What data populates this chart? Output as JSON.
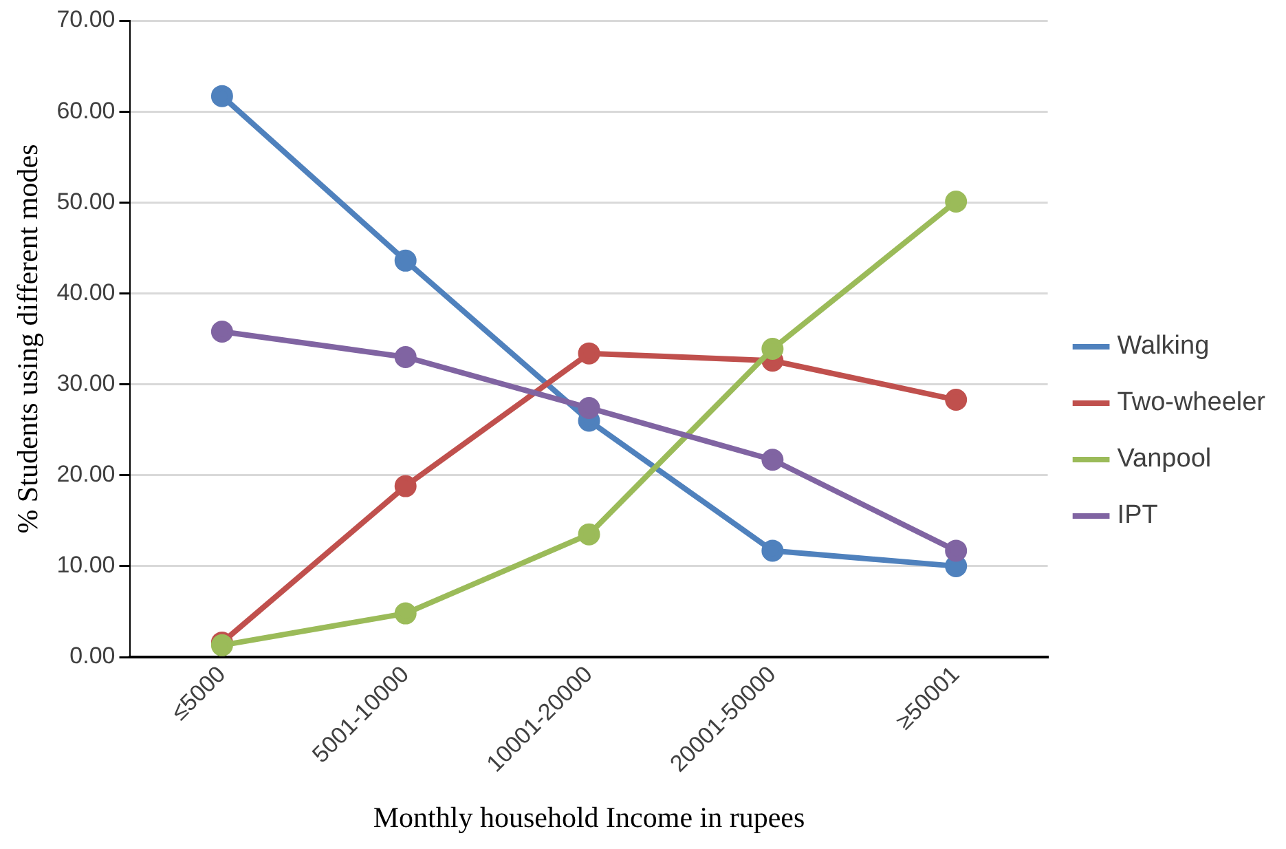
{
  "chart_data": {
    "type": "line",
    "xlabel": "Monthly household Income in rupees",
    "ylabel": "% Students using different modes",
    "categories": [
      "≤5000",
      "5001-10000",
      "10001-20000",
      "20001-50000",
      "≥50001"
    ],
    "series": [
      {
        "name": "Walking",
        "color": "#4f81bd",
        "values": [
          61.7,
          43.6,
          26.0,
          11.7,
          10.0
        ]
      },
      {
        "name": "Two-wheeler",
        "color": "#c0504d",
        "values": [
          1.6,
          18.8,
          33.4,
          32.6,
          28.3
        ]
      },
      {
        "name": "Vanpool",
        "color": "#9bbb59",
        "values": [
          1.3,
          4.8,
          13.5,
          33.9,
          50.1
        ]
      },
      {
        "name": "IPT",
        "color": "#8064a2",
        "values": [
          35.8,
          33.0,
          27.4,
          21.7,
          11.7
        ]
      }
    ],
    "ylim": [
      0,
      70
    ],
    "yticks": [
      {
        "value": 0,
        "label": "0.00"
      },
      {
        "value": 10,
        "label": "10.00"
      },
      {
        "value": 20,
        "label": "20.00"
      },
      {
        "value": 30,
        "label": "30.00"
      },
      {
        "value": 40,
        "label": "40.00"
      },
      {
        "value": 50,
        "label": "50.00"
      },
      {
        "value": 60,
        "label": "60.00"
      },
      {
        "value": 70,
        "label": "70.00"
      }
    ],
    "grid": "y",
    "legend": "right",
    "marker": "circle",
    "line_style": "solid"
  }
}
